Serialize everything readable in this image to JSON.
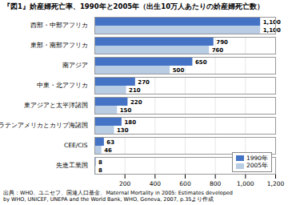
{
  "chart_data": {
    "type": "bar",
    "orientation": "horizontal",
    "title": "『図1』妎産婦死亡率、1990年と2005年（出生10万人あたりの妎産婦死亡数）",
    "categories": [
      "西部・中部アフリカ",
      "東部・南部アフリカ",
      "南アジア",
      "中東・北アフリカ",
      "東アジアと太平洋諸国",
      "ラテンアメリカとカリブ海諸国",
      "CEE/CIS",
      "先進工業国"
    ],
    "series": [
      {
        "name": "1990年",
        "color": "#4472c4",
        "values": [
          1100,
          790,
          650,
          270,
          220,
          180,
          63,
          8
        ],
        "value_labels": [
          "1,100",
          "790",
          "650",
          "270",
          "220",
          "180",
          "63",
          "8"
        ]
      },
      {
        "name": "2005年",
        "color": "#b8cce4",
        "values": [
          1100,
          760,
          500,
          210,
          150,
          130,
          46,
          8
        ],
        "value_labels": [
          "1,100",
          "760",
          "500",
          "210",
          "150",
          "130",
          "46",
          "8"
        ]
      }
    ],
    "xlim": [
      0,
      1200
    ],
    "xticks": [
      200,
      400,
      600,
      800,
      {
        "value": 1000,
        "label": "1,000"
      },
      {
        "value": 1200,
        "label": "1,200"
      }
    ],
    "grid": true,
    "legend": "lower right",
    "data_labels": true,
    "annotations": [
      "出典：WHO、ユニセフ、国連人口基金、Maternal Mortality in 2005: Estimates developed",
      "by WHO, UNICEF, UNEPA and the World Bank, WHO, Geneva, 2007, p.35より作成"
    ]
  }
}
